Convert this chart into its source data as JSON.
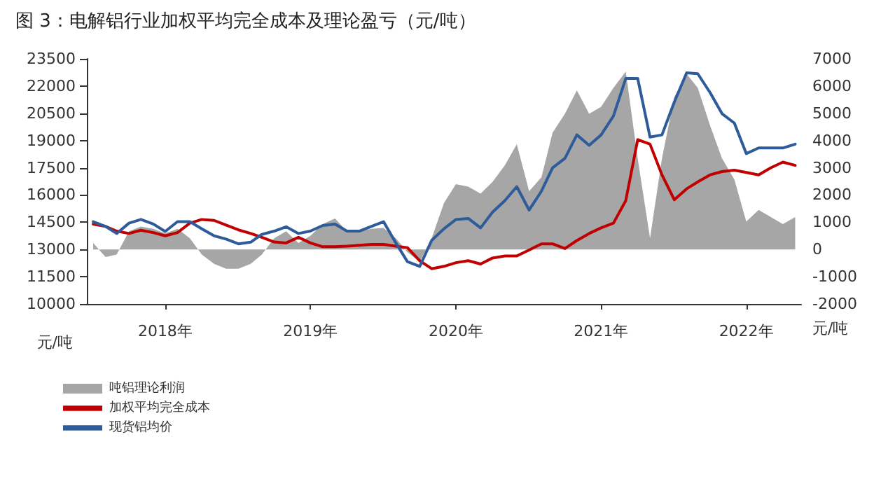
{
  "chart_data": {
    "type": "line",
    "title": "图 3：电解铝行业加权平均完全成本及理论盈亏（元/吨）",
    "ylabel": "元/吨",
    "y2label": "元/吨",
    "x": [
      "2018-01",
      "2018-02",
      "2018-03",
      "2018-04",
      "2018-05",
      "2018-06",
      "2018-07",
      "2018-08",
      "2018-09",
      "2018-10",
      "2018-11",
      "2018-12",
      "2019-01",
      "2019-02",
      "2019-03",
      "2019-04",
      "2019-05",
      "2019-06",
      "2019-07",
      "2019-08",
      "2019-09",
      "2019-10",
      "2019-11",
      "2019-12",
      "2020-01",
      "2020-02",
      "2020-03",
      "2020-04",
      "2020-05",
      "2020-06",
      "2020-07",
      "2020-08",
      "2020-09",
      "2020-10",
      "2020-11",
      "2020-12",
      "2021-01",
      "2021-02",
      "2021-03",
      "2021-04",
      "2021-05",
      "2021-06",
      "2021-07",
      "2021-08",
      "2021-09",
      "2021-10",
      "2021-11",
      "2021-12",
      "2022-01",
      "2022-02",
      "2022-03",
      "2022-04",
      "2022-05",
      "2022-06",
      "2022-07",
      "2022-08",
      "2022-09",
      "2022-10",
      "2022-11"
    ],
    "series": [
      {
        "name": "吨铝理论利润",
        "type": "area",
        "axis": "y2",
        "color": "#a6a6a6",
        "values": [
          240,
          -280,
          -190,
          670,
          840,
          760,
          590,
          760,
          410,
          -190,
          -530,
          -710,
          -710,
          -530,
          -190,
          410,
          670,
          240,
          500,
          930,
          1140,
          670,
          670,
          760,
          790,
          410,
          -100,
          -450,
          410,
          1710,
          2400,
          2310,
          2050,
          2480,
          3090,
          3860,
          2140,
          2650,
          4290,
          4980,
          5840,
          4980,
          5240,
          5930,
          6530,
          3340,
          410,
          3340,
          5590,
          6450,
          5930,
          4550,
          3340,
          2570,
          1020,
          1450,
          1190,
          930,
          1190
        ]
      },
      {
        "name": "加权平均完全成本",
        "color": "#c00000",
        "values": [
          14400,
          14270,
          14010,
          13880,
          14060,
          13930,
          13750,
          13930,
          14450,
          14650,
          14600,
          14340,
          14080,
          13880,
          13670,
          13410,
          13360,
          13670,
          13360,
          13150,
          13150,
          13180,
          13230,
          13280,
          13280,
          13180,
          13100,
          12380,
          11940,
          12070,
          12270,
          12380,
          12200,
          12530,
          12640,
          12640,
          12970,
          13310,
          13310,
          13050,
          13490,
          13880,
          14190,
          14450,
          15690,
          19050,
          18800,
          17110,
          15740,
          16340,
          16720,
          17110,
          17290,
          17370,
          17240,
          17110,
          17500,
          17810,
          17630
        ]
      },
      {
        "name": "现货铝均价",
        "color": "#2e5b9a",
        "values": [
          14530,
          14270,
          13880,
          14450,
          14650,
          14400,
          13990,
          14530,
          14530,
          14140,
          13750,
          13570,
          13310,
          13400,
          13830,
          14010,
          14250,
          13880,
          14010,
          14320,
          14400,
          14010,
          14010,
          14270,
          14530,
          13360,
          12330,
          12070,
          13500,
          14140,
          14650,
          14710,
          14190,
          15050,
          15690,
          16460,
          15170,
          16210,
          17500,
          18020,
          19310,
          18740,
          19310,
          20350,
          22420,
          22420,
          19190,
          19310,
          21120,
          22730,
          22680,
          21640,
          20480,
          19960,
          18280,
          18590,
          18590,
          18590,
          18800
        ]
      }
    ],
    "xlim": [
      "2017-12-16",
      "2022-11-16"
    ],
    "xticks": [
      {
        "value": "2018-07",
        "label": "2018年"
      },
      {
        "value": "2019-07",
        "label": "2019年"
      },
      {
        "value": "2020-07",
        "label": "2020年"
      },
      {
        "value": "2021-07",
        "label": "2021年"
      },
      {
        "value": "2022-07",
        "label": "2022年"
      }
    ],
    "ylim": [
      10000,
      23500
    ],
    "yticks": [
      10000,
      11500,
      13000,
      14500,
      16000,
      17500,
      19000,
      20500,
      22000,
      23500
    ],
    "y2lim": [
      -2000,
      7000
    ],
    "y2ticks": [
      -2000,
      -1000,
      0,
      1000,
      2000,
      3000,
      4000,
      5000,
      6000,
      7000
    ],
    "legend": "bottom left",
    "grid": false,
    "marker": "none",
    "line_style": "solid"
  }
}
